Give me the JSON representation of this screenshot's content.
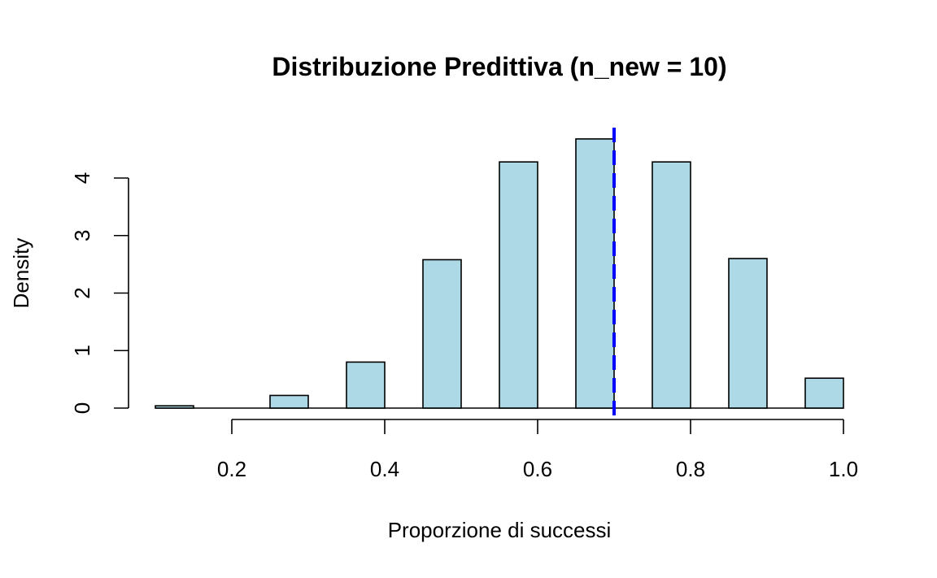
{
  "chart_data": {
    "type": "bar",
    "title": "Distribuzione Predittiva (n_new = 10)",
    "xlabel": "Proporzione di successi",
    "ylabel": "Density",
    "xlim": [
      0.1,
      1.0
    ],
    "ylim": [
      0,
      4.8
    ],
    "x_ticks": [
      0.2,
      0.4,
      0.6,
      0.8,
      1.0
    ],
    "x_tick_labels": [
      "0.2",
      "0.4",
      "0.6",
      "0.8",
      "1.0"
    ],
    "y_ticks": [
      0,
      1,
      2,
      3,
      4
    ],
    "y_tick_labels": [
      "0",
      "1",
      "2",
      "3",
      "4"
    ],
    "bins": [
      {
        "start": 0.1,
        "end": 0.15,
        "value": 0.04
      },
      {
        "start": 0.25,
        "end": 0.3,
        "value": 0.22
      },
      {
        "start": 0.35,
        "end": 0.4,
        "value": 0.8
      },
      {
        "start": 0.45,
        "end": 0.5,
        "value": 2.58
      },
      {
        "start": 0.55,
        "end": 0.6,
        "value": 4.28
      },
      {
        "start": 0.65,
        "end": 0.7,
        "value": 4.68
      },
      {
        "start": 0.75,
        "end": 0.8,
        "value": 4.28
      },
      {
        "start": 0.85,
        "end": 0.9,
        "value": 2.6
      },
      {
        "start": 0.95,
        "end": 1.0,
        "value": 0.52
      }
    ],
    "reference_line": {
      "x": 0.7,
      "style": "dashed",
      "color": "#0000ff"
    },
    "bar_fill": "#add8e6",
    "bar_stroke": "#000000",
    "grid": false,
    "legend": "none"
  }
}
